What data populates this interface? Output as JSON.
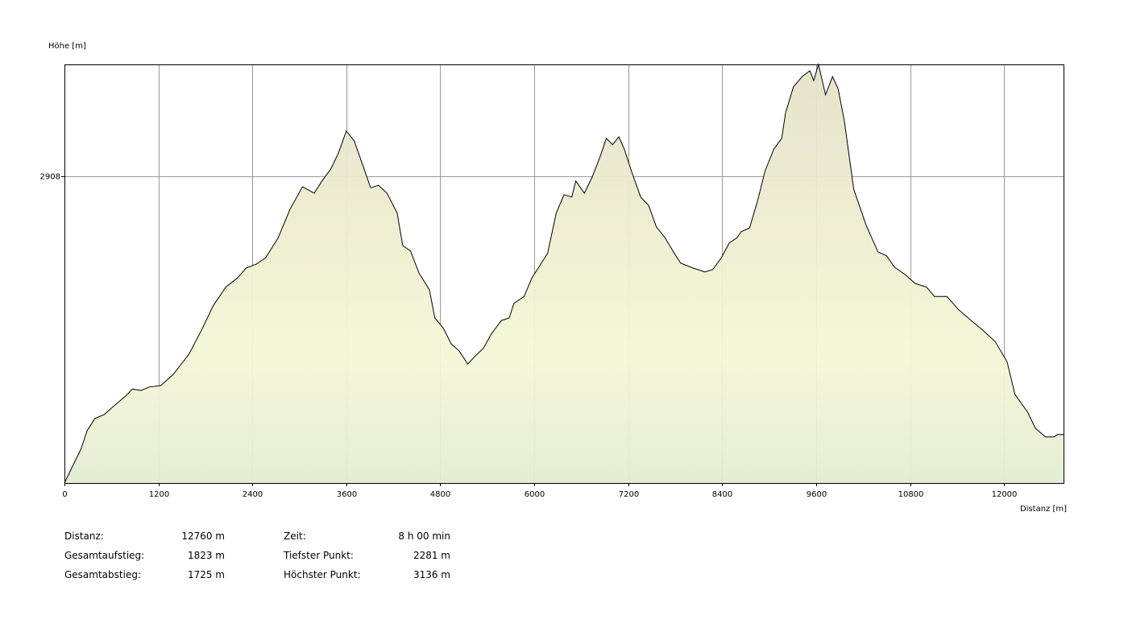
{
  "chart_data": {
    "type": "area",
    "y_label": "Höhe [m]",
    "x_label": "Distanz [m]",
    "x": [
      0,
      100,
      210,
      290,
      390,
      510,
      620,
      770,
      870,
      980,
      1080,
      1230,
      1390,
      1590,
      1750,
      1900,
      2060,
      2210,
      2320,
      2450,
      2570,
      2730,
      2880,
      3040,
      3190,
      3290,
      3400,
      3500,
      3600,
      3700,
      3810,
      3910,
      4010,
      4120,
      4250,
      4320,
      4420,
      4530,
      4660,
      4730,
      4840,
      4940,
      5040,
      5150,
      5250,
      5350,
      5450,
      5580,
      5680,
      5740,
      5870,
      5970,
      6070,
      6170,
      6280,
      6380,
      6480,
      6530,
      6640,
      6740,
      6840,
      6920,
      7000,
      7080,
      7150,
      7250,
      7360,
      7460,
      7560,
      7670,
      7770,
      7870,
      8030,
      8180,
      8280,
      8390,
      8490,
      8590,
      8640,
      8750,
      8850,
      8950,
      9060,
      9160,
      9210,
      9310,
      9420,
      9520,
      9570,
      9630,
      9720,
      9810,
      9880,
      9960,
      10080,
      10240,
      10390,
      10500,
      10600,
      10750,
      10860,
      11010,
      11110,
      11270,
      11420,
      11580,
      11730,
      11890,
      12040,
      12140,
      12300,
      12400,
      12530,
      12640,
      12680,
      12760
    ],
    "values": [
      2281,
      2314,
      2350,
      2388,
      2413,
      2421,
      2437,
      2457,
      2473,
      2470,
      2477,
      2480,
      2503,
      2544,
      2593,
      2643,
      2681,
      2700,
      2720,
      2728,
      2741,
      2782,
      2840,
      2886,
      2873,
      2898,
      2922,
      2955,
      3000,
      2980,
      2930,
      2884,
      2889,
      2873,
      2832,
      2766,
      2755,
      2709,
      2676,
      2618,
      2597,
      2565,
      2551,
      2524,
      2541,
      2556,
      2585,
      2613,
      2618,
      2648,
      2662,
      2700,
      2725,
      2750,
      2832,
      2870,
      2865,
      2898,
      2873,
      2906,
      2947,
      2985,
      2972,
      2988,
      2963,
      2914,
      2865,
      2848,
      2804,
      2782,
      2755,
      2730,
      2720,
      2712,
      2717,
      2741,
      2771,
      2782,
      2794,
      2802,
      2856,
      2919,
      2963,
      2985,
      3037,
      3090,
      3111,
      3123,
      3103,
      3136,
      3074,
      3111,
      3087,
      3021,
      2881,
      2807,
      2753,
      2745,
      2722,
      2705,
      2689,
      2681,
      2662,
      2662,
      2635,
      2613,
      2593,
      2569,
      2528,
      2462,
      2426,
      2393,
      2375,
      2375,
      2380,
      2380
    ],
    "xlim": [
      0,
      12760
    ],
    "ylim": [
      2281,
      3136
    ],
    "xticks": [
      0,
      1200,
      2400,
      3600,
      4800,
      6000,
      7200,
      8400,
      9600,
      10800,
      12000
    ],
    "yticks": [
      2908
    ],
    "grid": true,
    "color": "#000000"
  },
  "stats": [
    {
      "label": "Distanz:",
      "value": "12760 m"
    },
    {
      "label": "Gesamtaufstieg:",
      "value": "1823 m"
    },
    {
      "label": "Gesamtabstieg:",
      "value": "1725 m"
    },
    {
      "label": "Zeit:",
      "value": "8 h 00 min"
    },
    {
      "label": "Tiefster Punkt:",
      "value": "2281 m"
    },
    {
      "label": "Höchster Punkt:",
      "value": "3136 m"
    }
  ]
}
